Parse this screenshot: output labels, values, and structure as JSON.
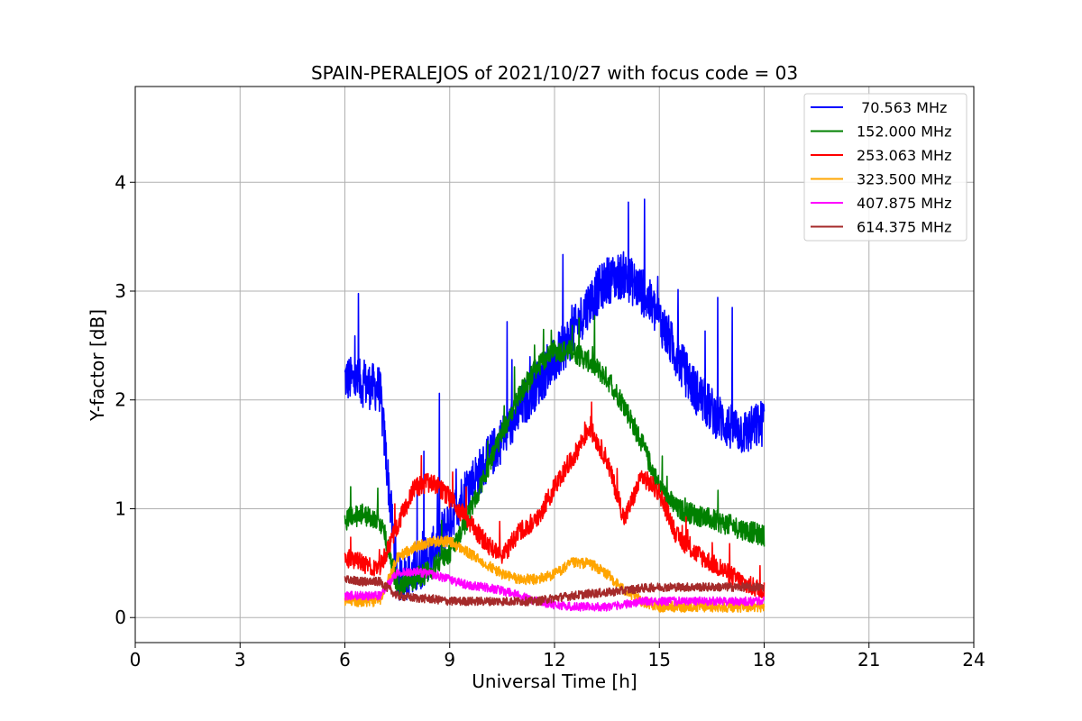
{
  "chart_data": {
    "type": "line",
    "title": "SPAIN-PERALEJOS of 2021/10/27 with focus code = 03",
    "xlabel": "Universal Time [h]",
    "ylabel": "Y-factor [dB]",
    "xlim": [
      0,
      24
    ],
    "ylim": [
      -0.23,
      4.88
    ],
    "xticks": [
      0,
      3,
      6,
      9,
      12,
      15,
      18,
      21,
      24
    ],
    "yticks": [
      0,
      1,
      2,
      3,
      4
    ],
    "grid": true,
    "legend_position": "top-right",
    "x": [
      6.0,
      6.5,
      7.0,
      7.5,
      8.0,
      8.5,
      9.0,
      9.5,
      10.0,
      10.5,
      11.0,
      11.5,
      12.0,
      12.5,
      13.0,
      13.5,
      14.0,
      14.5,
      15.0,
      15.5,
      16.0,
      16.5,
      17.0,
      17.5,
      18.0
    ],
    "series": [
      {
        "name": " 70.563 MHz",
        "color": "#0000ff",
        "values": [
          2.2,
          2.15,
          2.1,
          0.35,
          0.4,
          0.6,
          0.9,
          1.2,
          1.4,
          1.65,
          1.9,
          2.15,
          2.35,
          2.6,
          2.9,
          3.1,
          3.15,
          3.0,
          2.75,
          2.4,
          2.1,
          1.9,
          1.75,
          1.7,
          1.8
        ]
      },
      {
        "name": "152.000 MHz",
        "color": "#008000",
        "values": [
          0.9,
          0.95,
          0.9,
          0.3,
          0.35,
          0.45,
          0.6,
          0.9,
          1.3,
          1.7,
          2.05,
          2.3,
          2.45,
          2.45,
          2.35,
          2.2,
          1.95,
          1.6,
          1.2,
          1.0,
          0.95,
          0.9,
          0.85,
          0.8,
          0.75
        ]
      },
      {
        "name": "253.063 MHz",
        "color": "#ff0000",
        "values": [
          0.55,
          0.5,
          0.45,
          0.85,
          1.2,
          1.25,
          1.1,
          0.9,
          0.7,
          0.55,
          0.8,
          0.9,
          1.2,
          1.45,
          1.75,
          1.45,
          0.9,
          1.3,
          1.15,
          0.75,
          0.6,
          0.5,
          0.4,
          0.3,
          0.25
        ]
      },
      {
        "name": "323.500 MHz",
        "color": "#ffa500",
        "values": [
          0.15,
          0.15,
          0.15,
          0.55,
          0.65,
          0.7,
          0.7,
          0.6,
          0.5,
          0.4,
          0.35,
          0.35,
          0.4,
          0.5,
          0.5,
          0.4,
          0.25,
          0.15,
          0.1,
          0.1,
          0.1,
          0.1,
          0.1,
          0.1,
          0.1
        ]
      },
      {
        "name": "407.875 MHz",
        "color": "#ff00ff",
        "values": [
          0.2,
          0.2,
          0.2,
          0.42,
          0.42,
          0.4,
          0.35,
          0.3,
          0.28,
          0.25,
          0.2,
          0.15,
          0.12,
          0.1,
          0.1,
          0.1,
          0.12,
          0.15,
          0.15,
          0.15,
          0.15,
          0.15,
          0.15,
          0.15,
          0.15
        ]
      },
      {
        "name": "614.375 MHz",
        "color": "#a52a2a",
        "values": [
          0.35,
          0.33,
          0.33,
          0.2,
          0.18,
          0.17,
          0.15,
          0.15,
          0.15,
          0.15,
          0.15,
          0.15,
          0.18,
          0.2,
          0.22,
          0.23,
          0.25,
          0.27,
          0.28,
          0.28,
          0.28,
          0.28,
          0.28,
          0.28,
          0.28
        ]
      }
    ]
  }
}
